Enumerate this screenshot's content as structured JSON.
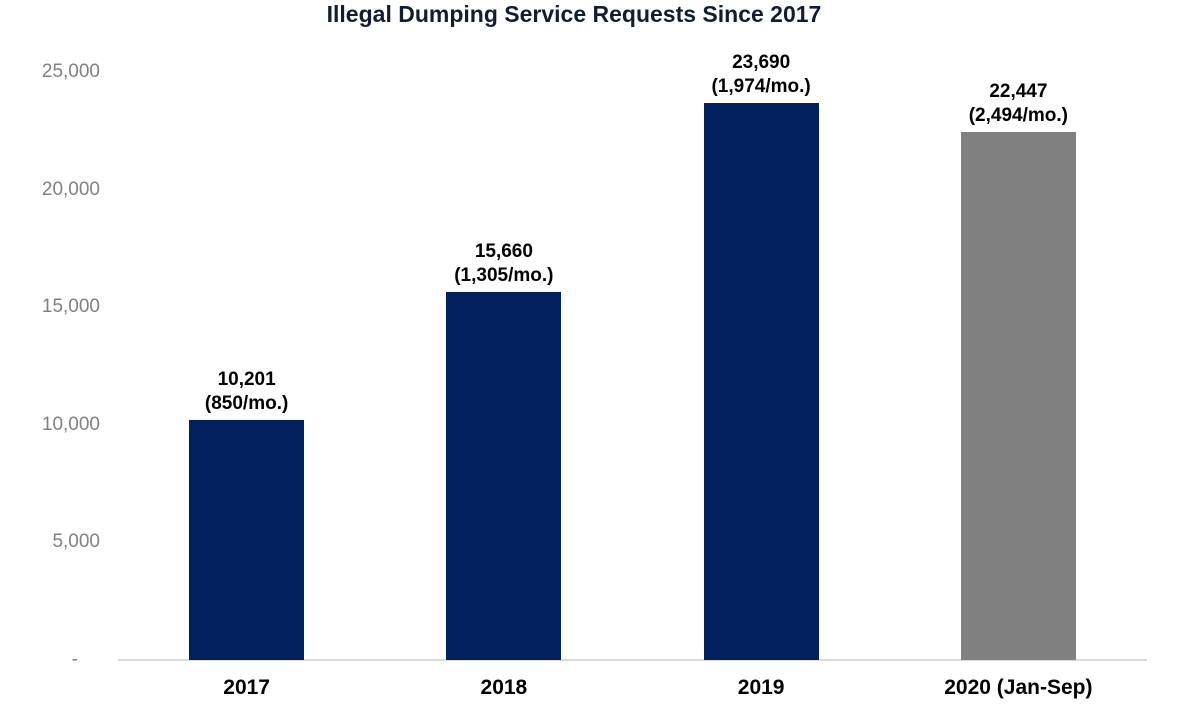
{
  "chart_data": {
    "type": "bar",
    "title": "Illegal Dumping Service Requests Since 2017",
    "title_color": "#121c33",
    "categories": [
      "2017",
      "2018",
      "2019",
      "2020 (Jan-Sep)"
    ],
    "values": [
      10201,
      15660,
      23690,
      22447
    ],
    "bar_labels": [
      {
        "total": "10,201",
        "rate": "(850/mo.)"
      },
      {
        "total": "15,660",
        "rate": "(1,305/mo.)"
      },
      {
        "total": "23,690",
        "rate": "(1,974/mo.)"
      },
      {
        "total": "22,447",
        "rate": "(2,494/mo.)"
      }
    ],
    "bar_colors": [
      "#04215f",
      "#04215f",
      "#04215f",
      "#808080"
    ],
    "yticks": [
      {
        "value": 25000,
        "label": "25,000"
      },
      {
        "value": 20000,
        "label": "20,000"
      },
      {
        "value": 15000,
        "label": "15,000"
      },
      {
        "value": 10000,
        "label": "10,000"
      },
      {
        "value": 5000,
        "label": "5,000"
      },
      {
        "value": 0,
        "label": "-"
      }
    ],
    "ylim": [
      0,
      25000
    ],
    "xlabel": "",
    "ylabel": "",
    "grid": false,
    "legend": "none",
    "tick_label_color": "#808080",
    "axis_line_color": "#d9d9d9"
  }
}
